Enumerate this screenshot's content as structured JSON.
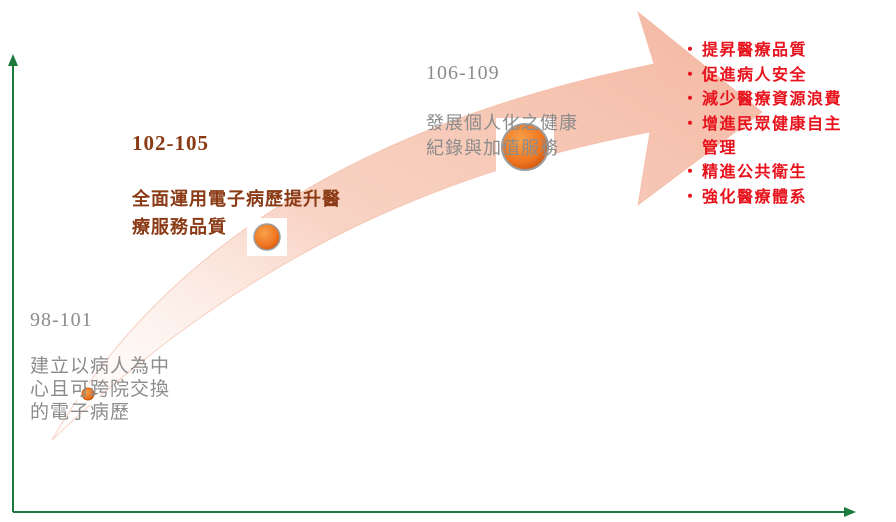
{
  "phases": [
    {
      "period": "98-101",
      "description": "建立以病人為中\n心且可跨院交換\n的電子病歷"
    },
    {
      "period": "102-105",
      "description": "全面運用電子病歷提升醫\n療服務品質"
    },
    {
      "period": "106-109",
      "description": "發展個人化之健康\n紀錄與加值服務"
    }
  ],
  "goals": [
    "提昇醫療品質",
    "促進病人安全",
    "減少醫療資源浪費",
    "增進民眾健康自主\n管理",
    "精進公共衛生",
    "強化醫療體系"
  ],
  "bullet": "・",
  "colors": {
    "axis": "#1e7a3c",
    "arrow": "#f6c9b8",
    "milestone": "#f07d26",
    "goal_text": "#e8121c",
    "phase_current": "#8a3a14",
    "phase_other": "#8c8c8c"
  }
}
